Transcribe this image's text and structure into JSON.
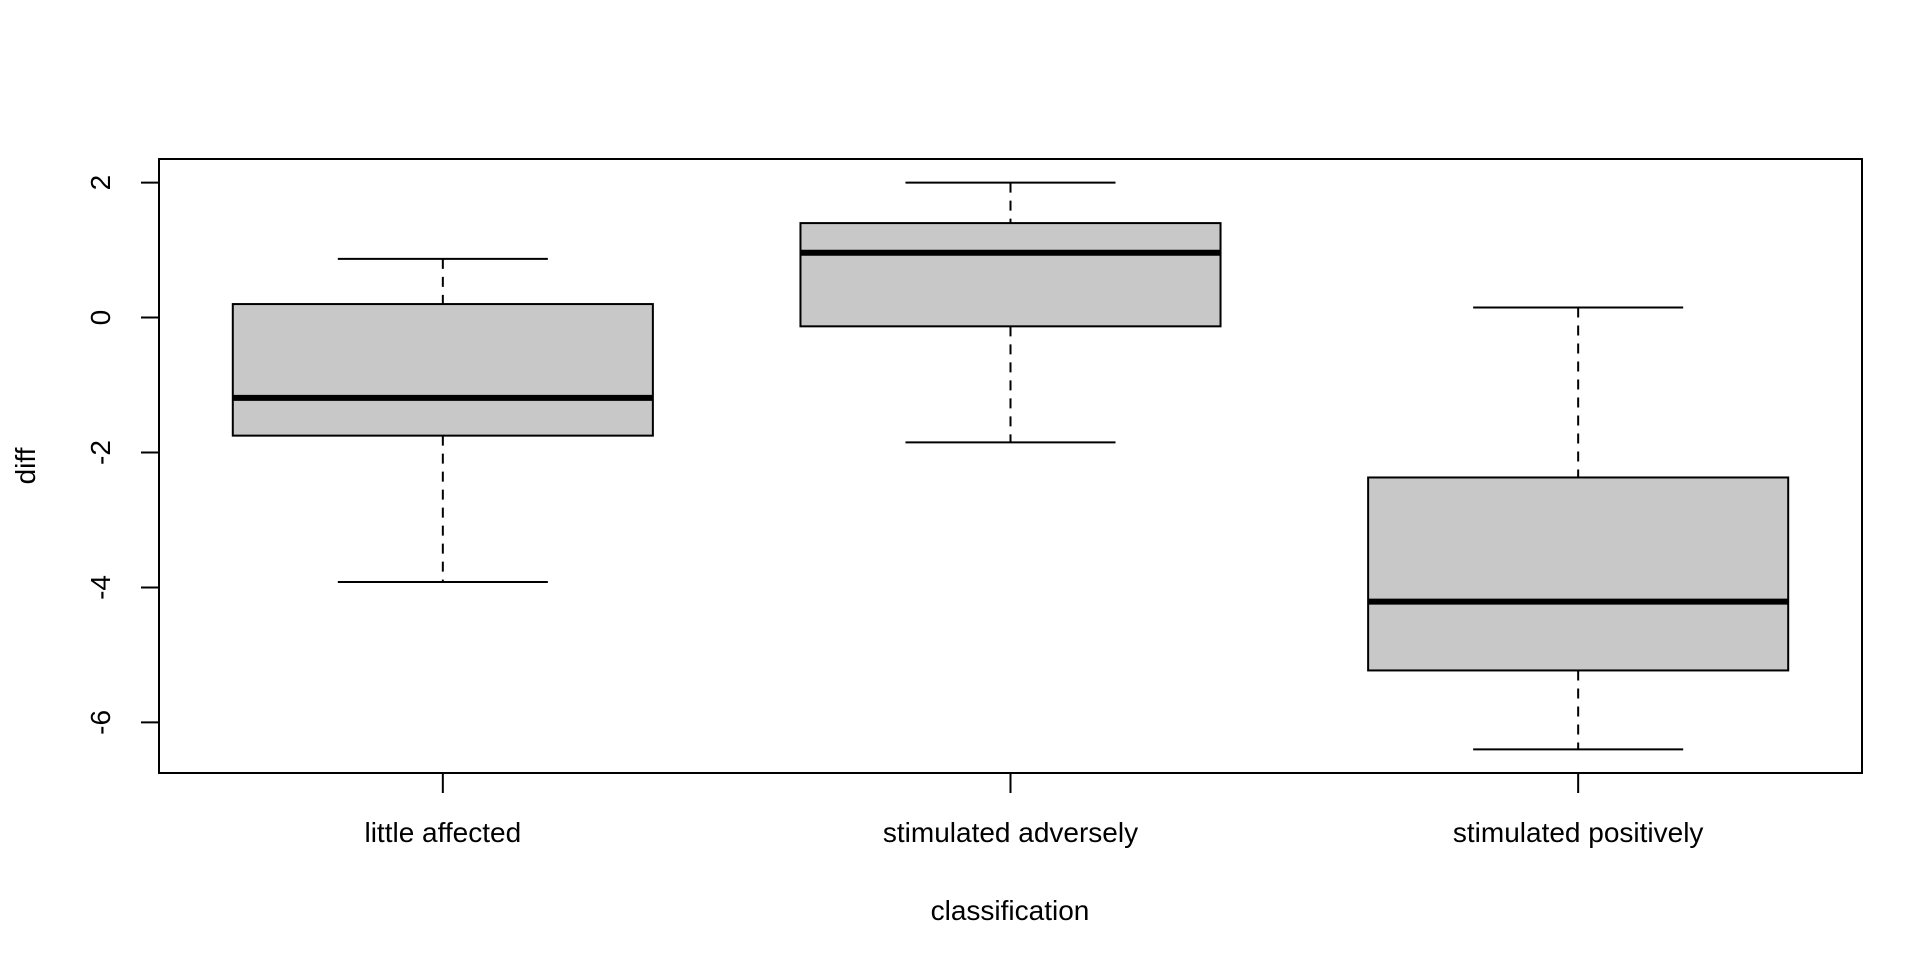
{
  "chart_data": {
    "type": "box",
    "xlabel": "classification",
    "ylabel": "diff",
    "ylim": [
      -6.75,
      2.35
    ],
    "yticks": [
      2,
      0,
      -2,
      -4,
      -6
    ],
    "ytick_labels": [
      "2",
      "0",
      "-2",
      "-4",
      "-6"
    ],
    "grid": false,
    "categories": [
      "little affected",
      "stimulated adversely",
      "stimulated positively"
    ],
    "boxes": [
      {
        "category": "little affected",
        "whisker_low": -3.92,
        "q1": -1.75,
        "median": -1.19,
        "q3": 0.2,
        "whisker_high": 0.87
      },
      {
        "category": "stimulated adversely",
        "whisker_low": -1.85,
        "q1": -0.13,
        "median": 0.96,
        "q3": 1.4,
        "whisker_high": 2.0
      },
      {
        "category": "stimulated positively",
        "whisker_low": -6.4,
        "q1": -5.23,
        "median": -4.21,
        "q3": -2.37,
        "whisker_high": 0.15
      }
    ],
    "colors": {
      "box_fill": "#c8c8c8",
      "stroke": "#000000"
    }
  }
}
